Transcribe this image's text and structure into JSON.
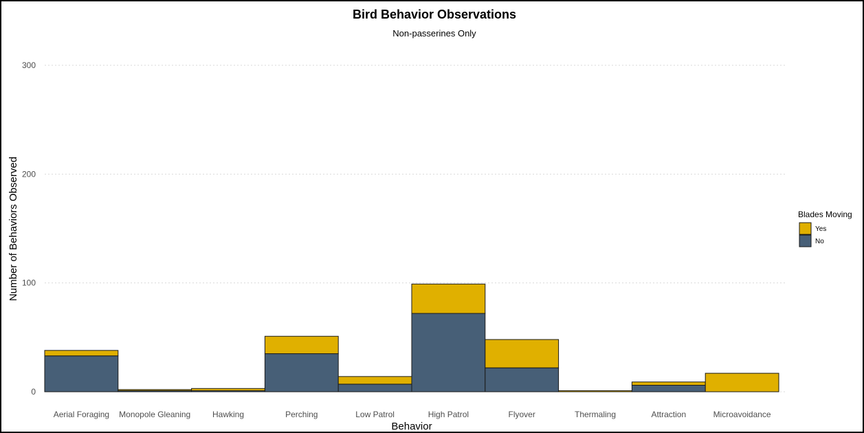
{
  "chart_data": {
    "type": "bar",
    "stacked": true,
    "title": "Bird Behavior Observations",
    "subtitle": "Non-passerines Only",
    "xlabel": "Behavior",
    "ylabel": "Number of Behaviors Observed",
    "ylim": [
      0,
      320
    ],
    "yticks": [
      0,
      100,
      200,
      300
    ],
    "grid": "horizontal dotted",
    "categories": [
      "Aerial Foraging",
      "Monopole Gleaning",
      "Hawking",
      "Perching",
      "Low Patrol",
      "High Patrol",
      "Flyover",
      "Thermaling",
      "Attraction",
      "Microavoidance"
    ],
    "series": [
      {
        "name": "No",
        "color": "#475f77",
        "values": [
          33,
          1,
          1,
          35,
          7,
          72,
          22,
          0,
          6,
          0
        ]
      },
      {
        "name": "Yes",
        "color": "#e0b000",
        "values": [
          5,
          1,
          2,
          16,
          7,
          27,
          26,
          1,
          3,
          17
        ]
      }
    ],
    "legend": {
      "title": "Blades Moving",
      "placement": "right",
      "order": [
        "Yes",
        "No"
      ]
    }
  }
}
